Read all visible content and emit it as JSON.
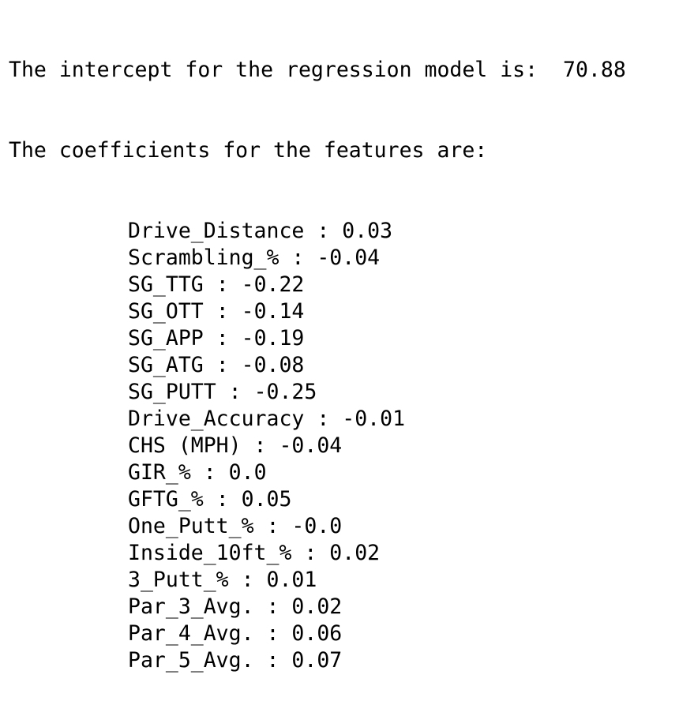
{
  "output": {
    "intercept_label": "The intercept for the regression model is:",
    "intercept_value": "70.88",
    "coefficients_header": "The coefficients for the features are:",
    "separator": " : ",
    "coefficients": [
      {
        "feature": "Drive_Distance",
        "value": "0.03"
      },
      {
        "feature": "Scrambling_%",
        "value": "-0.04"
      },
      {
        "feature": "SG_TTG",
        "value": "-0.22"
      },
      {
        "feature": "SG_OTT",
        "value": "-0.14"
      },
      {
        "feature": "SG_APP",
        "value": "-0.19"
      },
      {
        "feature": "SG_ATG",
        "value": "-0.08"
      },
      {
        "feature": "SG_PUTT",
        "value": "-0.25"
      },
      {
        "feature": "Drive_Accuracy",
        "value": "-0.01"
      },
      {
        "feature": "CHS (MPH)",
        "value": "-0.04"
      },
      {
        "feature": "GIR_%",
        "value": "0.0"
      },
      {
        "feature": "GFTG_%",
        "value": "0.05"
      },
      {
        "feature": "One_Putt_%",
        "value": "-0.0"
      },
      {
        "feature": "Inside_10ft_%",
        "value": "0.02"
      },
      {
        "feature": "3_Putt_%",
        "value": "0.01"
      },
      {
        "feature": "Par_3_Avg.",
        "value": "0.02"
      },
      {
        "feature": "Par_4_Avg.",
        "value": "0.06"
      },
      {
        "feature": "Par_5_Avg.",
        "value": "0.07"
      }
    ]
  }
}
